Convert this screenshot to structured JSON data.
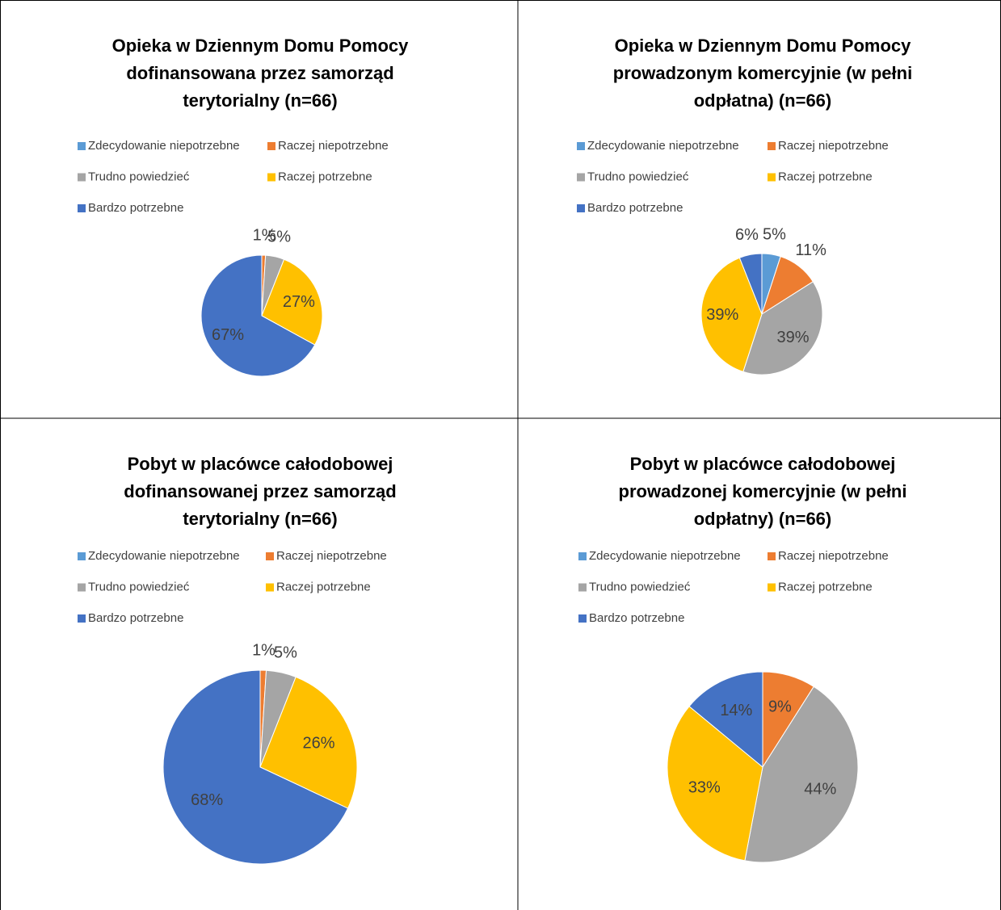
{
  "chart_data": [
    {
      "type": "pie",
      "title": "Opieka w Dziennym Domu Pomocy dofinansowana przez samorząd terytorialny (n=66)",
      "categories": [
        "Zdecydowanie niepotrzebne",
        "Raczej niepotrzebne",
        "Trudno powiedzieć",
        "Raczej potrzebne",
        "Bardzo potrzebne"
      ],
      "values": [
        0,
        1,
        5,
        27,
        67
      ],
      "value_labels": [
        null,
        "1%",
        "5%",
        "27%",
        "67%"
      ],
      "colors": [
        "#5b9bd5",
        "#ed7d31",
        "#a5a5a5",
        "#ffc000",
        "#4472c4"
      ]
    },
    {
      "type": "pie",
      "title": "Opieka w Dziennym Domu Pomocy prowadzonym komercyjnie (w pełni odpłatna) (n=66)",
      "categories": [
        "Zdecydowanie niepotrzebne",
        "Raczej niepotrzebne",
        "Trudno powiedzieć",
        "Raczej potrzebne",
        "Bardzo potrzebne"
      ],
      "values": [
        5,
        11,
        39,
        39,
        6
      ],
      "value_labels": [
        "5%",
        "11%",
        "39%",
        "39%",
        "6%"
      ],
      "colors": [
        "#5b9bd5",
        "#ed7d31",
        "#a5a5a5",
        "#ffc000",
        "#4472c4"
      ]
    },
    {
      "type": "pie",
      "title": "Pobyt w placówce całodobowej dofinansowanej przez samorząd terytorialny (n=66)",
      "categories": [
        "Zdecydowanie niepotrzebne",
        "Raczej niepotrzebne",
        "Trudno powiedzieć",
        "Raczej potrzebne",
        "Bardzo potrzebne"
      ],
      "values": [
        0,
        1,
        5,
        26,
        68
      ],
      "value_labels": [
        null,
        "1%",
        "5%",
        "26%",
        "68%"
      ],
      "colors": [
        "#5b9bd5",
        "#ed7d31",
        "#a5a5a5",
        "#ffc000",
        "#4472c4"
      ]
    },
    {
      "type": "pie",
      "title": "Pobyt w placówce całodobowej prowadzonej komercyjnie (w pełni odpłatny) (n=66)",
      "categories": [
        "Zdecydowanie niepotrzebne",
        "Raczej niepotrzebne",
        "Trudno powiedzieć",
        "Raczej potrzebne",
        "Bardzo potrzebne"
      ],
      "values": [
        0,
        9,
        44,
        33,
        14
      ],
      "value_labels": [
        null,
        "9%",
        "44%",
        "33%",
        "14%"
      ],
      "colors": [
        "#5b9bd5",
        "#ed7d31",
        "#a5a5a5",
        "#ffc000",
        "#4472c4"
      ]
    }
  ]
}
